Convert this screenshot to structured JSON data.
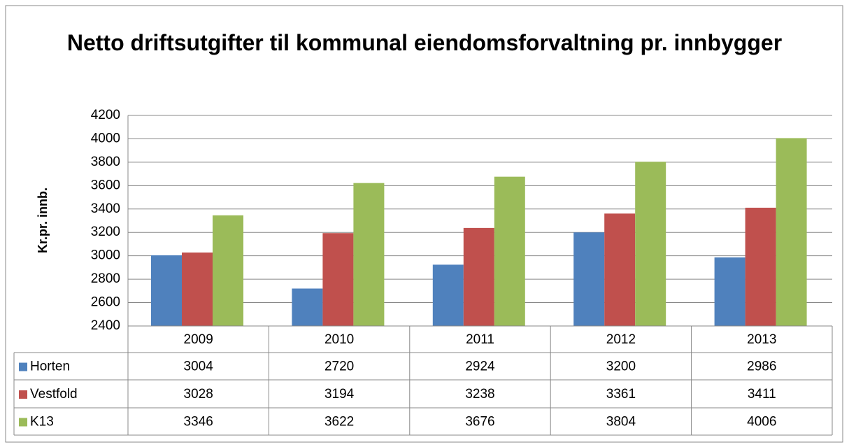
{
  "chart_data": {
    "type": "bar",
    "title": "Netto driftsutgifter til kommunal eiendomsforvaltning pr. innbygger",
    "ylabel": "Kr.pr. innb.",
    "categories": [
      "2009",
      "2010",
      "2011",
      "2012",
      "2013"
    ],
    "series": [
      {
        "name": "Horten",
        "color": "#4f81bd",
        "values": [
          3004,
          2720,
          2924,
          3200,
          2986
        ]
      },
      {
        "name": "Vestfold",
        "color": "#c0504d",
        "values": [
          3028,
          3194,
          3238,
          3361,
          3411
        ]
      },
      {
        "name": "K13",
        "color": "#9bbb59",
        "values": [
          3346,
          3622,
          3676,
          3804,
          4006
        ]
      }
    ],
    "ylim": [
      2400,
      4200
    ],
    "yticks": [
      2400,
      2600,
      2800,
      3000,
      3200,
      3400,
      3600,
      3800,
      4000,
      4200
    ],
    "grid": true,
    "data_table": true
  }
}
